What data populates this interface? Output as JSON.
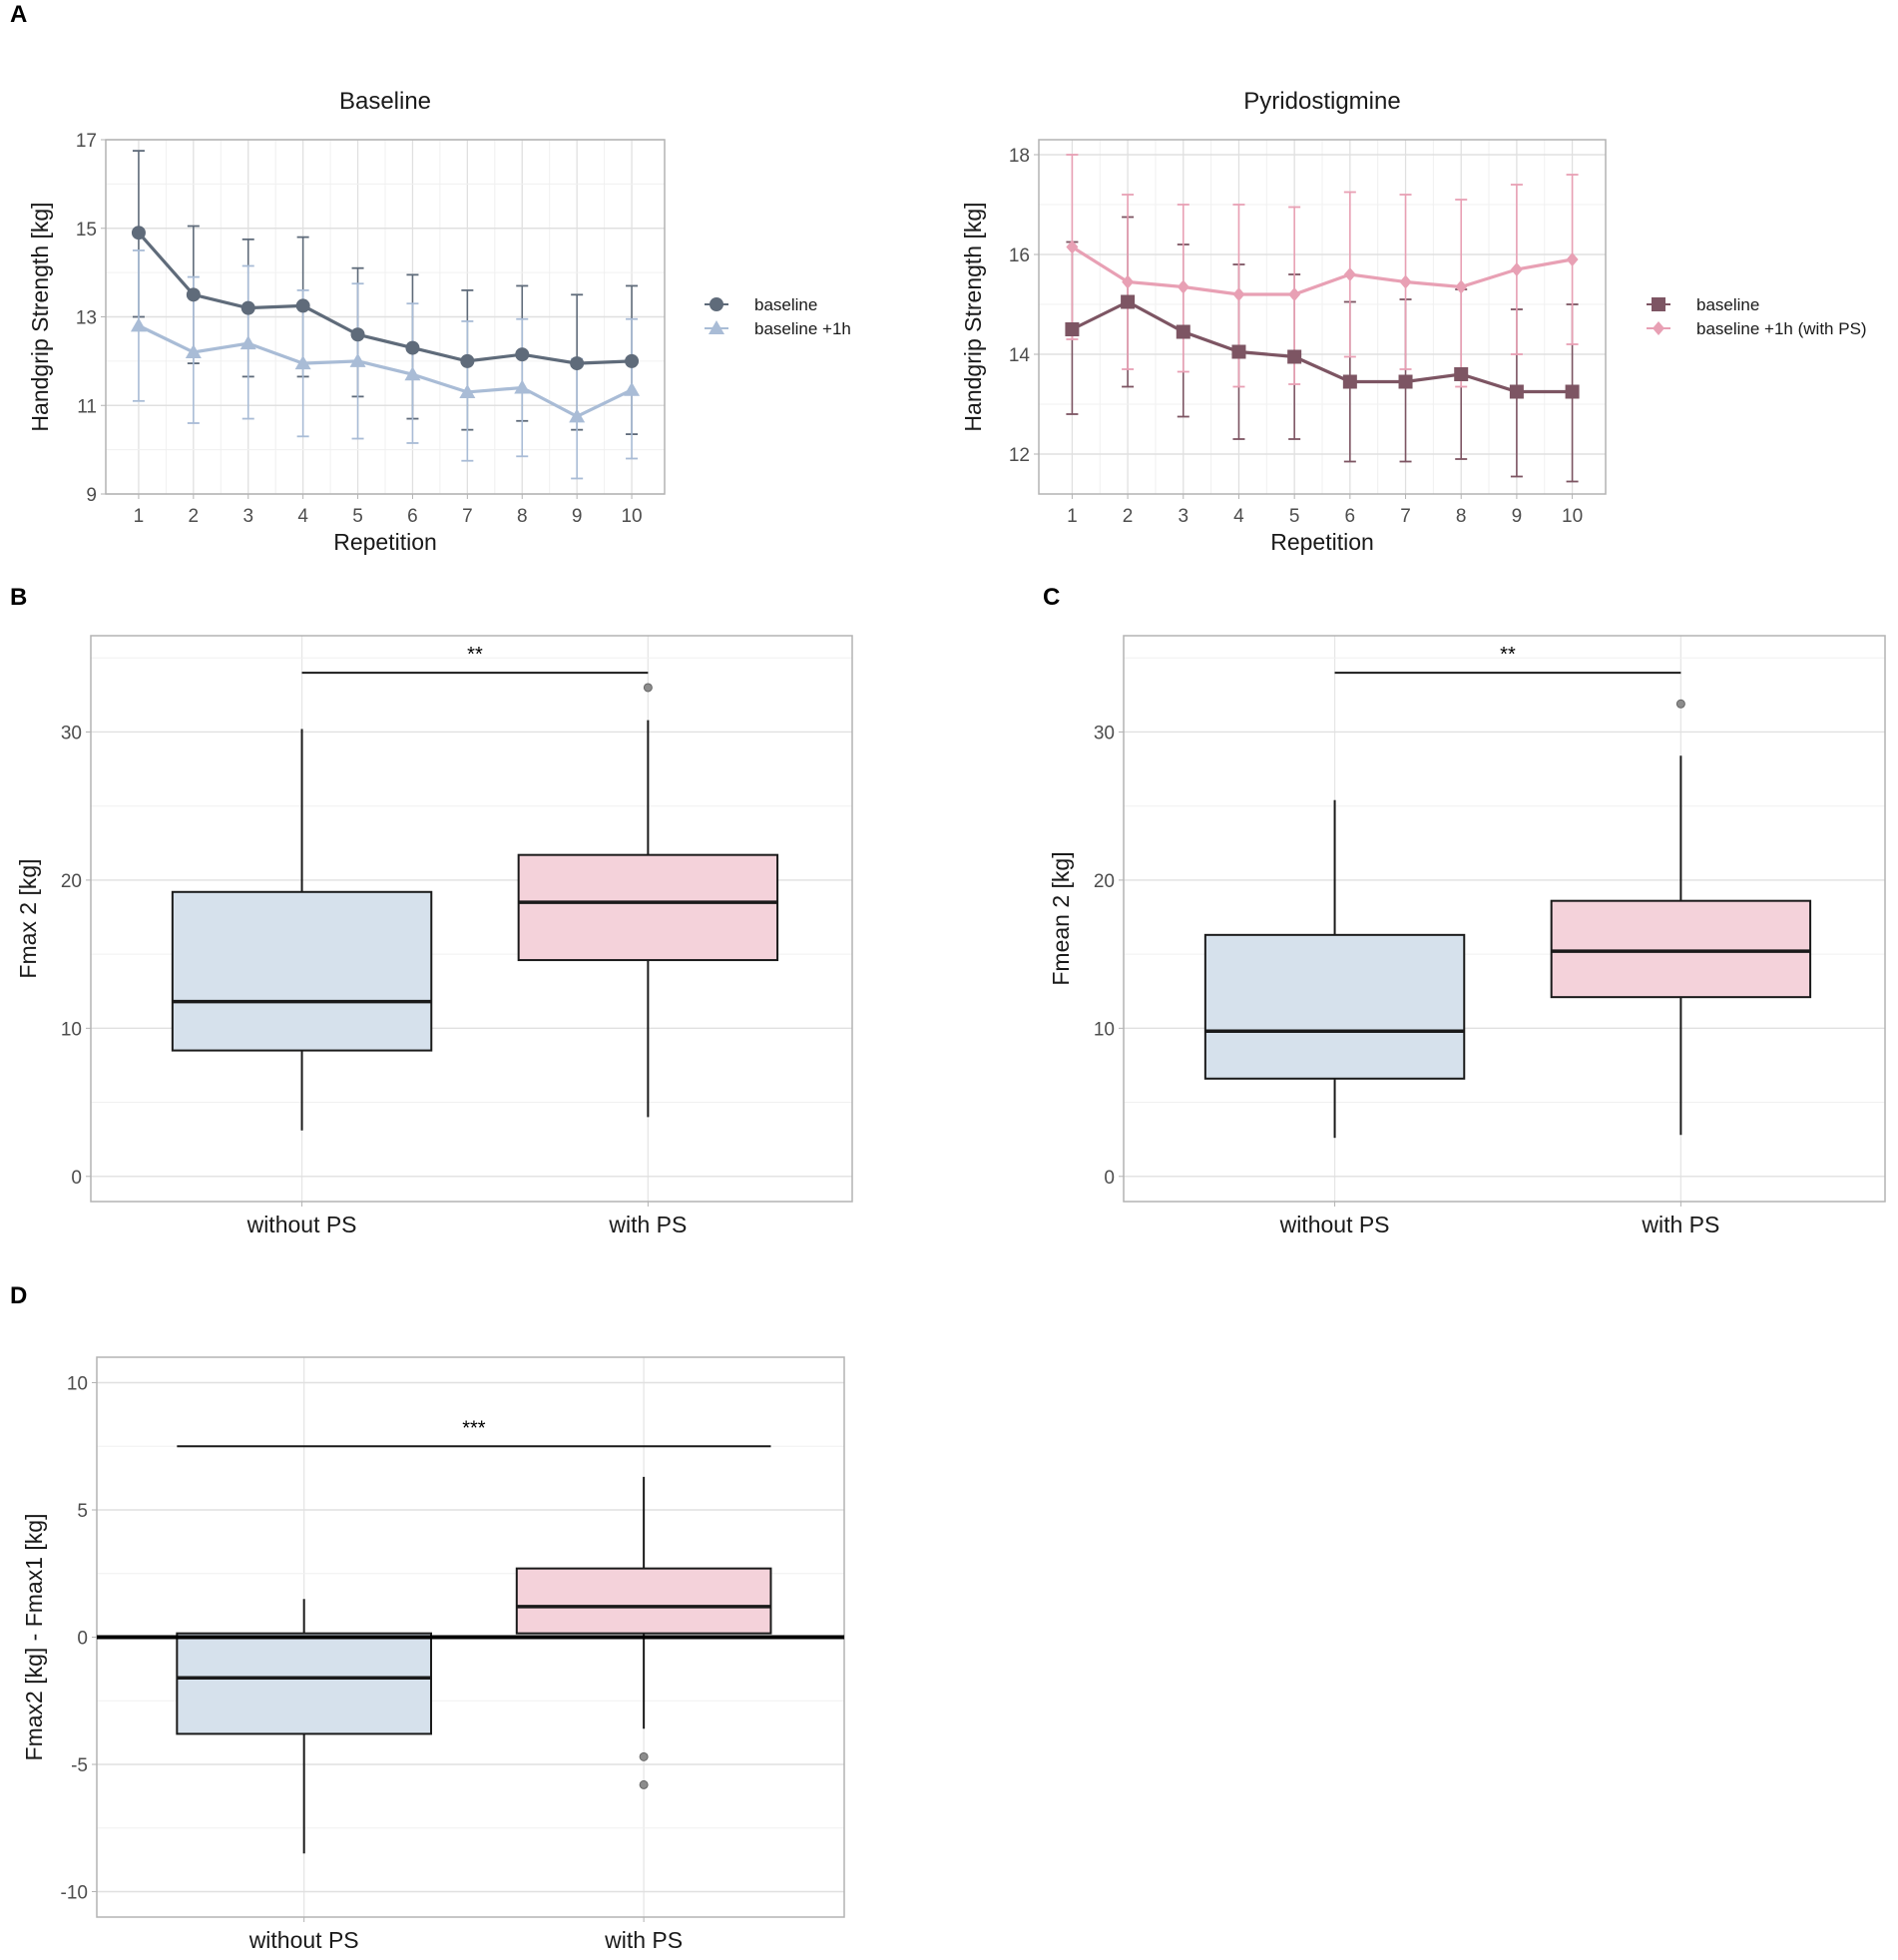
{
  "panel_labels": [
    "A",
    "B",
    "C",
    "D"
  ],
  "chart_data": [
    {
      "type": "line",
      "panel": "A",
      "title": "Baseline",
      "xlabel": "Repetition",
      "ylabel": "Handgrip Strength [kg]",
      "x": [
        1,
        2,
        3,
        4,
        5,
        6,
        7,
        8,
        9,
        10
      ],
      "ylim": [
        9,
        17
      ],
      "yticks": [
        9,
        11,
        13,
        15,
        17
      ],
      "grid": true,
      "legend_placement": "right",
      "series": [
        {
          "name": "baseline",
          "marker": "circle",
          "color": "#5f6b7a",
          "values": [
            14.9,
            13.5,
            13.2,
            13.25,
            12.6,
            12.3,
            12.0,
            12.15,
            11.95,
            12.0
          ],
          "upper": [
            16.75,
            15.05,
            14.75,
            14.8,
            14.1,
            13.95,
            13.6,
            13.7,
            13.5,
            13.7
          ],
          "lower": [
            13.0,
            11.95,
            11.65,
            11.65,
            11.2,
            10.7,
            10.45,
            10.65,
            10.45,
            10.35
          ]
        },
        {
          "name": "baseline +1h",
          "marker": "triangle",
          "color": "#a9bcd6",
          "values": [
            12.8,
            12.2,
            12.4,
            11.95,
            12.0,
            11.7,
            11.3,
            11.4,
            10.75,
            11.35
          ],
          "upper": [
            14.5,
            13.9,
            14.15,
            13.6,
            13.75,
            13.3,
            12.9,
            12.95,
            12.05,
            12.95
          ],
          "lower": [
            11.1,
            10.6,
            10.7,
            10.3,
            10.25,
            10.15,
            9.75,
            9.85,
            9.35,
            9.8
          ]
        }
      ]
    },
    {
      "type": "line",
      "panel": "A",
      "title": "Pyridostigmine",
      "xlabel": "Repetition",
      "ylabel": "Handgrip Strength [kg]",
      "x": [
        1,
        2,
        3,
        4,
        5,
        6,
        7,
        8,
        9,
        10
      ],
      "ylim": [
        11.2,
        18.3
      ],
      "yticks": [
        12,
        14,
        16,
        18
      ],
      "grid": true,
      "legend_placement": "right",
      "series": [
        {
          "name": "baseline",
          "marker": "square",
          "color": "#7d5563",
          "values": [
            14.5,
            15.05,
            14.45,
            14.05,
            13.95,
            13.45,
            13.45,
            13.6,
            13.25,
            13.25
          ],
          "upper": [
            16.25,
            16.75,
            16.2,
            15.8,
            15.6,
            15.05,
            15.1,
            15.3,
            14.9,
            15.0
          ],
          "lower": [
            12.8,
            13.35,
            12.75,
            12.3,
            12.3,
            11.85,
            11.85,
            11.9,
            11.55,
            11.45
          ]
        },
        {
          "name": "baseline +1h (with PS)",
          "marker": "diamond",
          "color": "#e8a0b4",
          "values": [
            16.15,
            15.45,
            15.35,
            15.2,
            15.2,
            15.6,
            15.45,
            15.35,
            15.7,
            15.9
          ],
          "upper": [
            18.0,
            17.2,
            17.0,
            17.0,
            16.95,
            17.25,
            17.2,
            17.1,
            17.4,
            17.6
          ],
          "lower": [
            14.3,
            13.7,
            13.65,
            13.35,
            13.4,
            13.95,
            13.7,
            13.35,
            14.0,
            14.2
          ]
        }
      ]
    },
    {
      "type": "box",
      "panel": "B",
      "ylabel": "Fmax 2 [kg]",
      "categories": [
        "without PS",
        "with PS"
      ],
      "ylim": [
        -1.7,
        36.5
      ],
      "yticks": [
        0,
        10,
        20,
        30
      ],
      "boxes": [
        {
          "min": 3.1,
          "q1": 8.5,
          "median": 11.8,
          "q3": 19.2,
          "max": 30.2,
          "outliers": [],
          "fill": "#d6e1ec"
        },
        {
          "min": 4.0,
          "q1": 14.6,
          "median": 18.5,
          "q3": 21.7,
          "max": 30.8,
          "outliers": [
            33.0
          ],
          "fill": "#f4d2da"
        }
      ],
      "significance": {
        "label": "**",
        "y": 34
      }
    },
    {
      "type": "box",
      "panel": "C",
      "ylabel": "Fmean 2 [kg]",
      "categories": [
        "without PS",
        "with PS"
      ],
      "ylim": [
        -1.7,
        36.5
      ],
      "yticks": [
        0,
        10,
        20,
        30
      ],
      "boxes": [
        {
          "min": 2.6,
          "q1": 6.6,
          "median": 9.8,
          "q3": 16.3,
          "max": 25.4,
          "outliers": [],
          "fill": "#d6e1ec"
        },
        {
          "min": 2.8,
          "q1": 12.1,
          "median": 15.2,
          "q3": 18.6,
          "max": 28.4,
          "outliers": [
            31.9
          ],
          "fill": "#f4d2da"
        }
      ],
      "significance": {
        "label": "**",
        "y": 34
      }
    },
    {
      "type": "box",
      "panel": "D",
      "ylabel": "Fmax2 [kg] - Fmax1 [kg]",
      "categories": [
        "without PS",
        "with PS"
      ],
      "ylim": [
        -11,
        11
      ],
      "yticks": [
        -10,
        -5,
        0,
        5,
        10
      ],
      "reference_line": 0,
      "boxes": [
        {
          "min": -8.5,
          "q1": -3.8,
          "median": -1.6,
          "q3": 0.15,
          "max": 1.5,
          "outliers": [],
          "fill": "#d6e1ec"
        },
        {
          "min": -3.6,
          "q1": 0.15,
          "median": 1.2,
          "q3": 2.7,
          "max": 6.3,
          "outliers": [
            -4.7,
            -5.8
          ],
          "fill": "#f4d2da"
        }
      ],
      "significance": {
        "label": "***",
        "y": 7.5,
        "wide": true
      }
    }
  ]
}
